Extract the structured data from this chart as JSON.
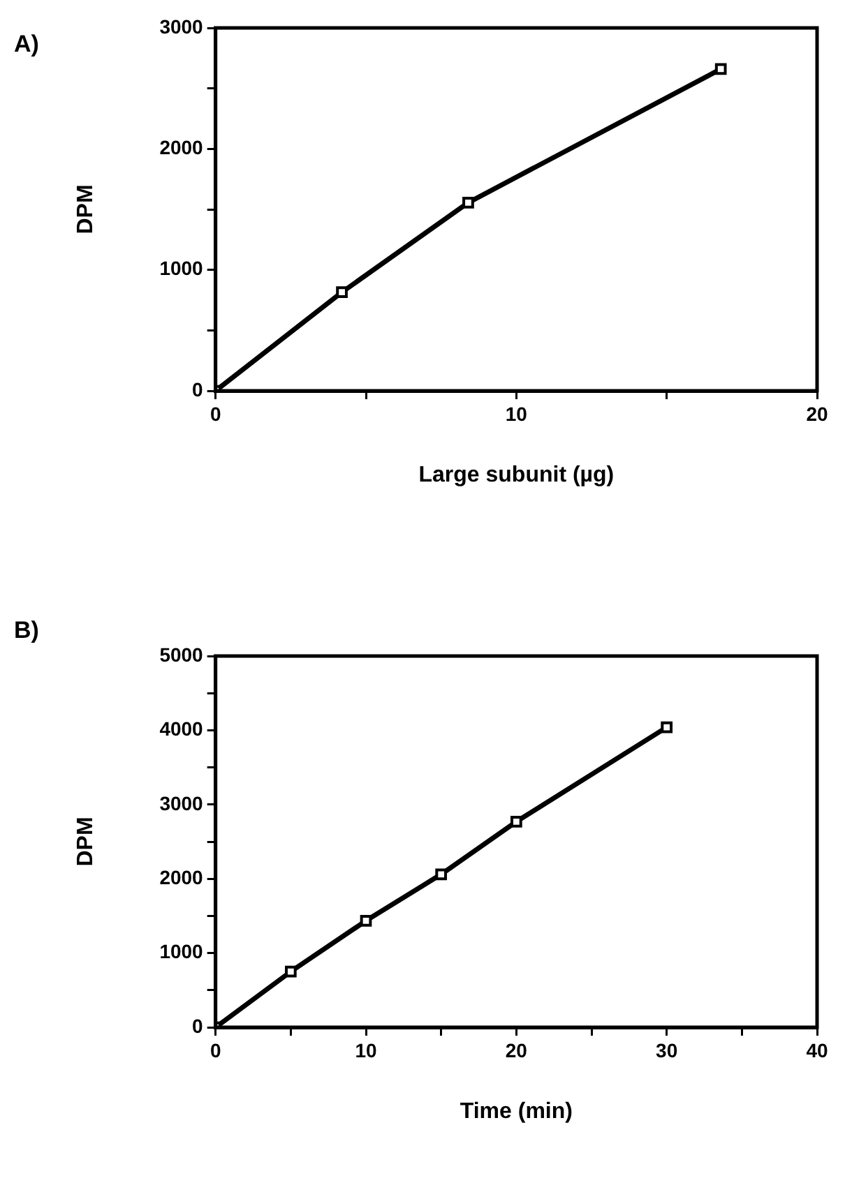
{
  "chart_data": [
    {
      "type": "line",
      "title": "A)",
      "xlabel": "Large subunit (µg)",
      "ylabel": "DPM",
      "x": [
        0,
        4.2,
        8.4,
        16.8
      ],
      "series": [
        {
          "color": "#000000",
          "values": [
            0,
            815,
            1556,
            2660
          ]
        }
      ],
      "xlim": [
        0,
        20
      ],
      "xticks": [
        0,
        {
          "value": 5,
          "label": null
        },
        10,
        {
          "value": 15,
          "label": null
        },
        20
      ],
      "ylim": [
        0,
        3000
      ],
      "yticks": [
        0,
        {
          "value": 500,
          "label": null
        },
        1000,
        {
          "value": 1500,
          "label": null
        },
        2000,
        {
          "value": 2500,
          "label": null
        },
        3000
      ],
      "marker": "square",
      "line_style": "solid",
      "grid": false,
      "legend": false
    },
    {
      "type": "line",
      "title": "B)",
      "xlabel": "Time (min)",
      "ylabel": "DPM",
      "x": [
        0,
        5,
        10,
        15,
        20,
        30
      ],
      "series": [
        {
          "color": "#000000",
          "values": [
            0,
            750,
            1435,
            2060,
            2770,
            4040
          ]
        }
      ],
      "xlim": [
        0,
        40
      ],
      "xticks": [
        0,
        {
          "value": 5,
          "label": null
        },
        10,
        {
          "value": 15,
          "label": null
        },
        20,
        {
          "value": 25,
          "label": null
        },
        30,
        {
          "value": 35,
          "label": null
        },
        40
      ],
      "ylim": [
        0,
        5000
      ],
      "yticks": [
        0,
        {
          "value": 500,
          "label": null
        },
        1000,
        {
          "value": 1500,
          "label": null
        },
        2000,
        {
          "value": 2500,
          "label": null
        },
        3000,
        {
          "value": 3500,
          "label": null
        },
        4000,
        {
          "value": 4500,
          "label": null
        },
        5000
      ],
      "marker": "square",
      "line_style": "solid",
      "grid": false,
      "legend": false
    }
  ]
}
